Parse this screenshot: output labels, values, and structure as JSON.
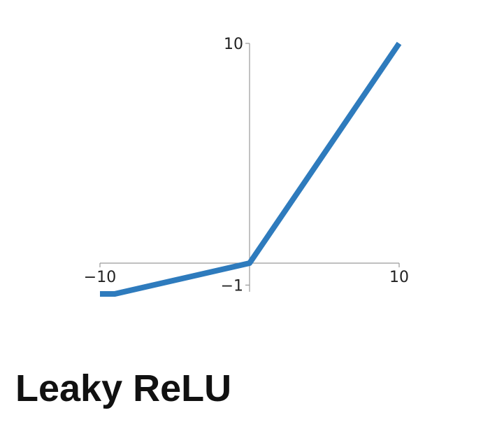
{
  "chart_data": {
    "type": "line",
    "title": "Leaky ReLU",
    "xlabel": "",
    "ylabel": "",
    "xlim": [
      -10,
      10
    ],
    "ylim": [
      -1.5,
      10
    ],
    "grid": false,
    "x_ticks": [
      -10,
      10
    ],
    "x_tick_labels": [
      "−10",
      "10"
    ],
    "y_ticks": [
      10,
      -1
    ],
    "y_tick_labels": [
      "10",
      "−1"
    ],
    "series": [
      {
        "color": "#2e7bbd",
        "x": [
          -10,
          -9,
          0,
          10
        ],
        "y": [
          -1.4,
          -1.4,
          0,
          10
        ]
      }
    ]
  }
}
